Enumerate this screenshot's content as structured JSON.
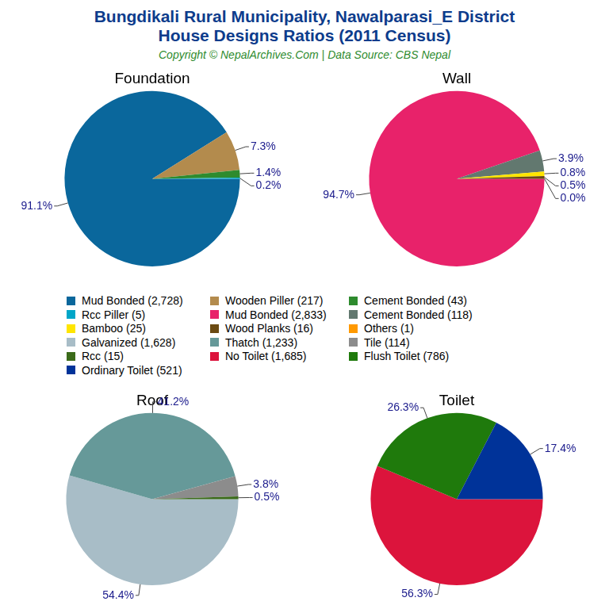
{
  "title": [
    "Bungdikali Rural Municipality, Nawalparasi_E District",
    "House Designs Ratios (2011 Census)"
  ],
  "subtitle": "Copyright © NepalArchives.Com | Data Source: CBS Nepal",
  "chart_data": [
    {
      "type": "pie",
      "title": "Foundation",
      "categories": [
        "Mud Bonded (2,728)",
        "Wooden Piller (217)",
        "Cement Bonded (43)",
        "Rcc Piller (5)"
      ],
      "values": [
        91.1,
        7.3,
        1.4,
        0.2
      ],
      "value_labels": [
        "91.1%",
        "7.3%",
        "1.4%",
        "0.2%"
      ],
      "colors": [
        "#0a679c",
        "#b38b4d",
        "#2e8b2e",
        "#00a6c8"
      ],
      "data_labels": true
    },
    {
      "type": "pie",
      "title": "Wall",
      "categories": [
        "Mud Bonded (2,833)",
        "Cement Bonded (118)",
        "Bamboo (25)",
        "Wood Planks (16)",
        "Others (1)"
      ],
      "values": [
        94.7,
        3.9,
        0.8,
        0.5,
        0.0
      ],
      "value_labels": [
        "94.7%",
        "3.9%",
        "0.8%",
        "0.5%",
        "0.0%"
      ],
      "colors": [
        "#e8226a",
        "#62786f",
        "#ffe500",
        "#6b4a12",
        "#ff9900"
      ],
      "data_labels": true
    },
    {
      "type": "pie",
      "title": "Roof",
      "categories": [
        "Galvanized (1,628)",
        "Thatch (1,233)",
        "Tile (114)",
        "Rcc (15)"
      ],
      "values": [
        54.4,
        41.2,
        3.8,
        0.5
      ],
      "value_labels": [
        "54.4%",
        "41.2%",
        "3.8%",
        "0.5%"
      ],
      "colors": [
        "#a8bdc7",
        "#669999",
        "#8c8c8c",
        "#3b6b1a"
      ],
      "data_labels": true
    },
    {
      "type": "pie",
      "title": "Toilet",
      "categories": [
        "No Toilet (1,685)",
        "Flush Toilet (786)",
        "Ordinary Toilet (521)"
      ],
      "values": [
        56.3,
        26.3,
        17.4
      ],
      "value_labels": [
        "56.3%",
        "26.3%",
        "17.4%"
      ],
      "colors": [
        "#dc143c",
        "#1f7a0c",
        "#003399"
      ],
      "data_labels": true
    }
  ]
}
